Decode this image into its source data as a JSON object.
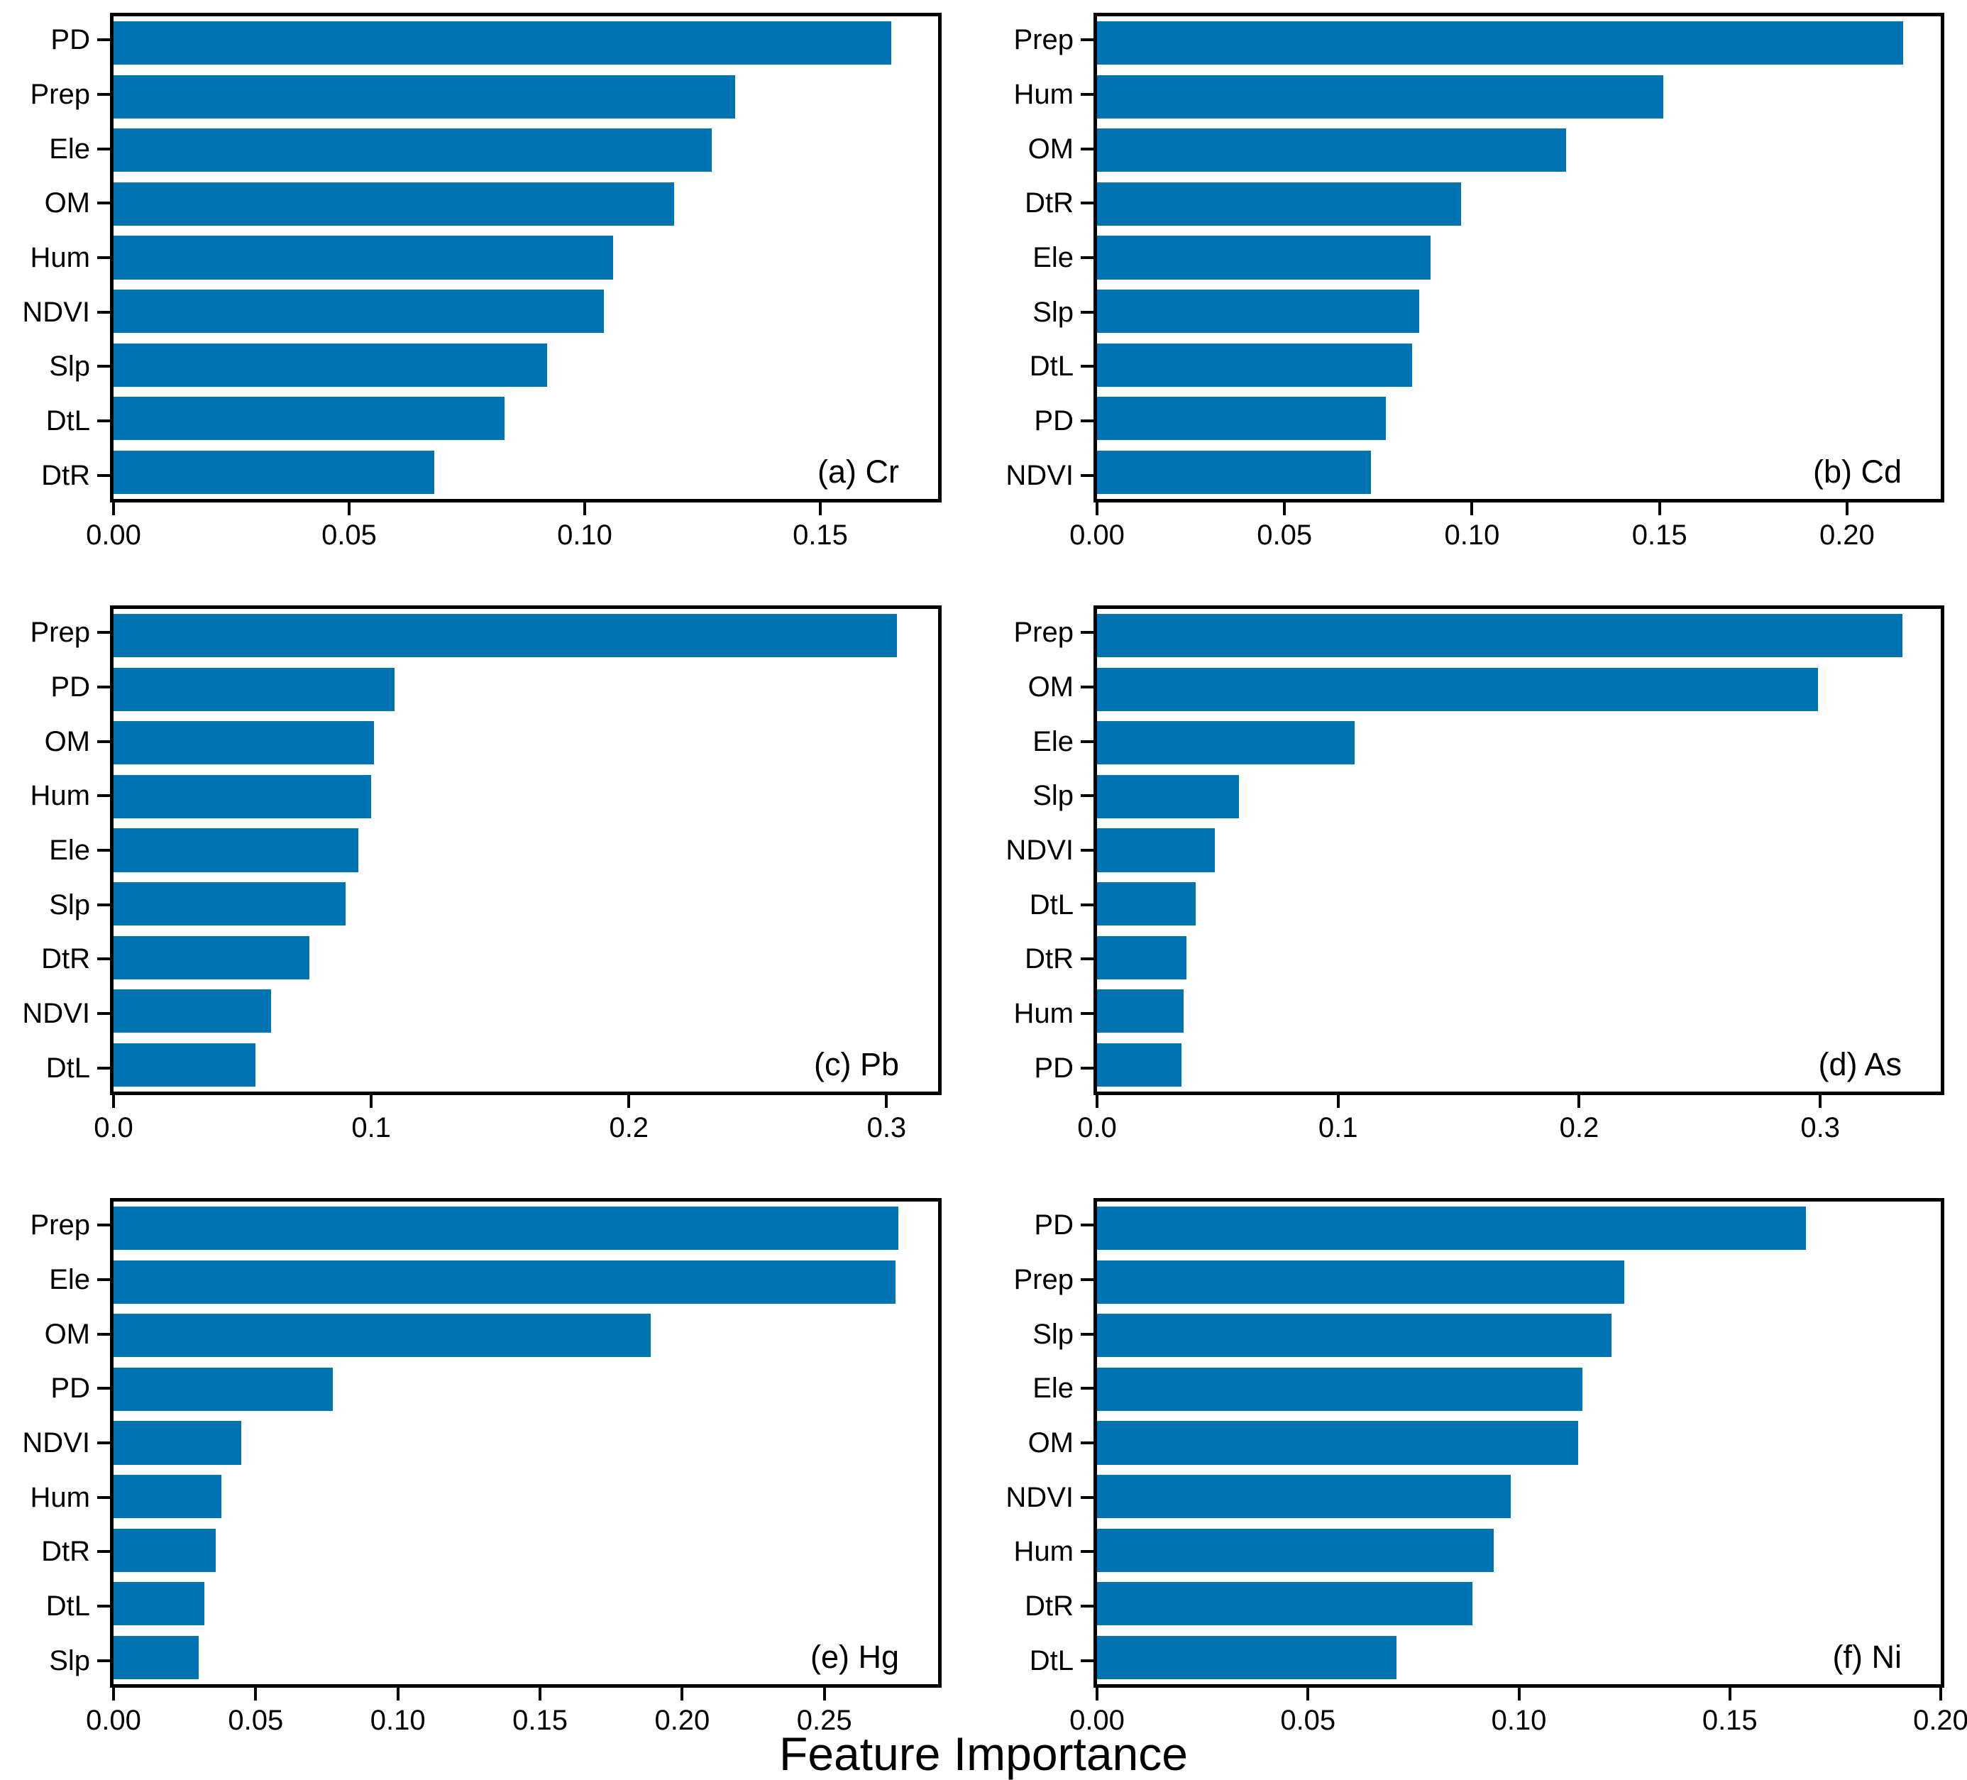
{
  "figure": {
    "xlabel": "Feature Importance",
    "bar_color": "#0074B3",
    "axis_color": "#000000",
    "background_color": "#FFFFFF"
  },
  "chart_data": [
    {
      "type": "bar",
      "orientation": "horizontal",
      "panel_label": "(a) Cr",
      "element": "Cr",
      "categories": [
        "PD",
        "Prep",
        "Ele",
        "OM",
        "Hum",
        "NDVI",
        "Slp",
        "DtL",
        "DtR"
      ],
      "values": [
        0.165,
        0.132,
        0.127,
        0.119,
        0.106,
        0.104,
        0.092,
        0.083,
        0.068
      ],
      "xlim": [
        0,
        0.175
      ],
      "xtick_values": [
        0,
        0.05,
        0.1,
        0.15
      ],
      "xtick_labels": [
        "0.00",
        "0.05",
        "0.10",
        "0.15"
      ],
      "grid": false,
      "legend": false
    },
    {
      "type": "bar",
      "orientation": "horizontal",
      "panel_label": "(b) Cd",
      "element": "Cd",
      "categories": [
        "Prep",
        "Hum",
        "OM",
        "DtR",
        "Ele",
        "Slp",
        "DtL",
        "PD",
        "NDVI"
      ],
      "values": [
        0.215,
        0.151,
        0.125,
        0.097,
        0.089,
        0.086,
        0.084,
        0.077,
        0.073
      ],
      "xlim": [
        0,
        0.225
      ],
      "xtick_values": [
        0,
        0.05,
        0.1,
        0.15,
        0.2
      ],
      "xtick_labels": [
        "0.00",
        "0.05",
        "0.10",
        "0.15",
        "0.20"
      ],
      "grid": false,
      "legend": false
    },
    {
      "type": "bar",
      "orientation": "horizontal",
      "panel_label": "(c) Pb",
      "element": "Pb",
      "categories": [
        "Prep",
        "PD",
        "OM",
        "Hum",
        "Ele",
        "Slp",
        "DtR",
        "NDVI",
        "DtL"
      ],
      "values": [
        0.304,
        0.109,
        0.101,
        0.1,
        0.095,
        0.09,
        0.076,
        0.061,
        0.055
      ],
      "xlim": [
        0,
        0.32
      ],
      "xtick_values": [
        0,
        0.1,
        0.2,
        0.3
      ],
      "xtick_labels": [
        "0.0",
        "0.1",
        "0.2",
        "0.3"
      ],
      "grid": false,
      "legend": false
    },
    {
      "type": "bar",
      "orientation": "horizontal",
      "panel_label": "(d) As",
      "element": "As",
      "categories": [
        "Prep",
        "OM",
        "Ele",
        "Slp",
        "NDVI",
        "DtL",
        "DtR",
        "Hum",
        "PD"
      ],
      "values": [
        0.334,
        0.299,
        0.107,
        0.059,
        0.049,
        0.041,
        0.037,
        0.036,
        0.035
      ],
      "xlim": [
        0,
        0.35
      ],
      "xtick_values": [
        0,
        0.1,
        0.2,
        0.3
      ],
      "xtick_labels": [
        "0.0",
        "0.1",
        "0.2",
        "0.3"
      ],
      "grid": false,
      "legend": false
    },
    {
      "type": "bar",
      "orientation": "horizontal",
      "panel_label": "(e) Hg",
      "element": "Hg",
      "categories": [
        "Prep",
        "Ele",
        "OM",
        "PD",
        "NDVI",
        "Hum",
        "DtR",
        "DtL",
        "Slp"
      ],
      "values": [
        0.276,
        0.275,
        0.189,
        0.077,
        0.045,
        0.038,
        0.036,
        0.032,
        0.03
      ],
      "xlim": [
        0,
        0.29
      ],
      "xtick_values": [
        0,
        0.05,
        0.1,
        0.15,
        0.2,
        0.25
      ],
      "xtick_labels": [
        "0.00",
        "0.05",
        "0.10",
        "0.15",
        "0.20",
        "0.25"
      ],
      "grid": false,
      "legend": false
    },
    {
      "type": "bar",
      "orientation": "horizontal",
      "panel_label": "(f) Ni",
      "element": "Ni",
      "categories": [
        "PD",
        "Prep",
        "Slp",
        "Ele",
        "OM",
        "NDVI",
        "Hum",
        "DtR",
        "DtL"
      ],
      "values": [
        0.168,
        0.125,
        0.122,
        0.115,
        0.114,
        0.098,
        0.094,
        0.089,
        0.071
      ],
      "xlim": [
        0,
        0.2
      ],
      "xtick_values": [
        0,
        0.05,
        0.1,
        0.15,
        0.2
      ],
      "xtick_labels": [
        "0.00",
        "0.05",
        "0.10",
        "0.15",
        "0.20"
      ],
      "grid": false,
      "legend": false
    }
  ]
}
